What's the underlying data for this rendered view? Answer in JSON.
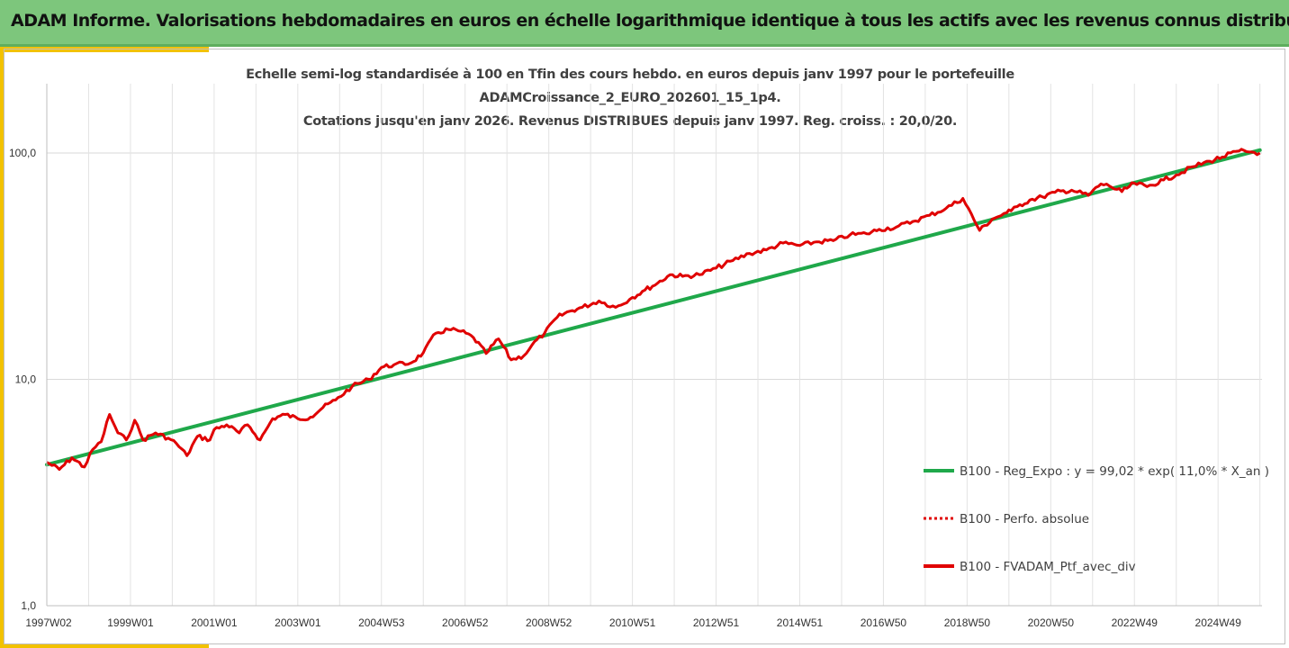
{
  "header": {
    "banner_title": "ADAM Informe. Valorisations hebdomadaires en euros en échelle logarithmique identique à tous les actifs avec les revenus connus distribués"
  },
  "chart_data": {
    "type": "line",
    "title_lines": [
      "Echelle semi-log standardisée à 100 en Tfin des cours hebdo.  en euros depuis janv 1997 pour le portefeuille",
      "ADAMCroissance_2_EURO_202601_15_1p4.",
      "Cotations  jusqu'en janv 2026. Revenus DISTRIBUES depuis janv 1997. Reg. croiss. : 20,0/20."
    ],
    "y_scale": "log",
    "ylim": [
      1,
      100
    ],
    "y_ticks": [
      "1,0",
      "10,0",
      "100,0"
    ],
    "xlim": [
      1997.0,
      2026.05
    ],
    "x_ticks": [
      {
        "x": 1997.0,
        "label": "1997W02"
      },
      {
        "x": 1999.0,
        "label": "1999W01"
      },
      {
        "x": 2001.0,
        "label": "2001W01"
      },
      {
        "x": 2003.0,
        "label": "2003W01"
      },
      {
        "x": 2005.0,
        "label": "2004W53"
      },
      {
        "x": 2007.0,
        "label": "2006W52"
      },
      {
        "x": 2009.0,
        "label": "2008W52"
      },
      {
        "x": 2011.0,
        "label": "2010W51"
      },
      {
        "x": 2013.0,
        "label": "2012W51"
      },
      {
        "x": 2015.0,
        "label": "2014W51"
      },
      {
        "x": 2017.0,
        "label": "2016W50"
      },
      {
        "x": 2019.0,
        "label": "2018W50"
      },
      {
        "x": 2021.0,
        "label": "2020W50"
      },
      {
        "x": 2023.0,
        "label": "2022W49"
      },
      {
        "x": 2025.0,
        "label": "2024W49"
      }
    ],
    "grid": "vertical",
    "legend_position": "right",
    "colors": {
      "regression": "#1fa84a",
      "portfolio": "#e00000",
      "perfo": "#e00000"
    },
    "series": [
      {
        "name": "B100 - Reg_Expo : y = 99,02 * exp( 11,0% *  X_an )",
        "style": "solid-green",
        "x": [
          1997.0,
          2026.0
        ],
        "y": [
          4.2,
          103.0
        ]
      },
      {
        "name": "B100 - Perfo. absolue",
        "style": "dotted-red",
        "x": [],
        "y": []
      },
      {
        "name": "B100 - FVADAM_Ptf_avec_div",
        "style": "solid-red",
        "x": [
          1997.0,
          1997.3,
          1997.6,
          1997.9,
          1998.1,
          1998.3,
          1998.5,
          1998.7,
          1998.9,
          1999.1,
          1999.3,
          1999.6,
          1999.9,
          2000.1,
          2000.35,
          2000.6,
          2000.9,
          2001.0,
          2001.3,
          2001.6,
          2001.8,
          2002.1,
          2002.4,
          2002.7,
          2003.0,
          2003.3,
          2003.6,
          2003.9,
          2004.3,
          2004.7,
          2005.0,
          2005.3,
          2005.7,
          2006.0,
          2006.3,
          2006.6,
          2006.9,
          2007.2,
          2007.5,
          2007.8,
          2008.1,
          2008.4,
          2008.6,
          2008.9,
          2009.2,
          2009.5,
          2009.8,
          2010.2,
          2010.6,
          2011.0,
          2011.3,
          2011.6,
          2011.9,
          2012.2,
          2012.6,
          2013.0,
          2013.4,
          2013.8,
          2014.2,
          2014.6,
          2015.0,
          2015.4,
          2015.8,
          2016.2,
          2016.6,
          2016.9,
          2017.3,
          2017.7,
          2018.1,
          2018.5,
          2018.9,
          2019.3,
          2019.6,
          2019.95,
          2020.05,
          2020.2,
          2020.5,
          2020.8,
          2021.1,
          2021.5,
          2021.9,
          2022.2,
          2022.4,
          2022.7,
          2023.0,
          2023.3,
          2023.7,
          2024.0,
          2024.4,
          2024.8,
          2025.1,
          2025.5,
          2025.8,
          2026.0
        ],
        "y": [
          4.3,
          4.0,
          4.5,
          4.1,
          4.9,
          5.3,
          7.0,
          5.8,
          5.4,
          6.6,
          5.4,
          5.8,
          5.5,
          5.2,
          4.6,
          5.6,
          5.4,
          6.0,
          6.3,
          5.8,
          6.3,
          5.4,
          6.7,
          7.0,
          6.7,
          6.8,
          7.5,
          8.1,
          9.3,
          10.0,
          11.3,
          11.6,
          11.8,
          13.1,
          16.0,
          16.6,
          16.3,
          15.3,
          13.0,
          15.1,
          12.2,
          12.7,
          14.2,
          16.0,
          18.8,
          20.0,
          20.8,
          22.2,
          20.8,
          23.0,
          24.8,
          26.6,
          29.0,
          28.5,
          29.0,
          31.0,
          33.5,
          36.0,
          37.3,
          40.0,
          39.0,
          40.5,
          41.0,
          43.5,
          44.0,
          46.0,
          47.0,
          49.8,
          53.0,
          57.0,
          63.0,
          45.5,
          51.0,
          54.5,
          55.5,
          58.0,
          62.0,
          64.0,
          67.0,
          68.5,
          65.0,
          73.0,
          71.5,
          67.5,
          73.5,
          71.0,
          76.0,
          80.0,
          87.0,
          92.0,
          96.0,
          102.0,
          101.0,
          100.0
        ]
      }
    ]
  }
}
